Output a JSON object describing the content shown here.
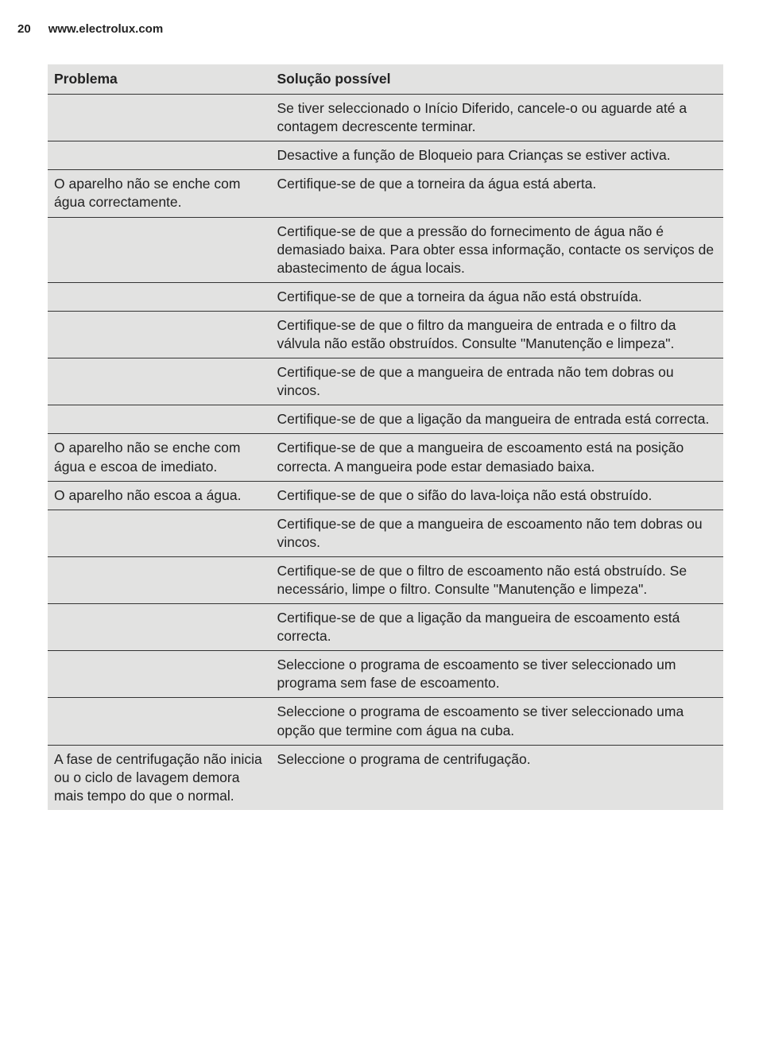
{
  "page": {
    "number": "20",
    "url": "www.electrolux.com"
  },
  "colors": {
    "row_bg": "#e2e2e1",
    "border": "#333333",
    "text": "#222222",
    "page_bg": "#ffffff"
  },
  "table": {
    "header": {
      "problem": "Problema",
      "solution": "Solução possível"
    },
    "rows": [
      {
        "problem": "",
        "solution": "Se tiver seleccionado o Início Diferido, cancele-o ou aguarde até a contagem decrescente terminar."
      },
      {
        "problem": "",
        "solution": "Desactive a função de Bloqueio para Crianças se estiver activa."
      },
      {
        "problem": "O aparelho não se enche com água correctamente.",
        "solution": "Certifique-se de que a torneira da água está aberta."
      },
      {
        "problem": "",
        "solution": "Certifique-se de que a pressão do fornecimento de água não é demasiado baixa. Para obter essa informação, contacte os serviços de abastecimento de água locais."
      },
      {
        "problem": "",
        "solution": "Certifique-se de que a torneira da água não está obstruída."
      },
      {
        "problem": "",
        "solution": "Certifique-se de que o filtro da mangueira de entrada e o filtro da válvula não estão obstruídos. Consulte \"Manutenção e limpeza\"."
      },
      {
        "problem": "",
        "solution": "Certifique-se de que a mangueira de entrada não tem dobras ou vincos."
      },
      {
        "problem": "",
        "solution": "Certifique-se de que a ligação da mangueira de entrada está correcta."
      },
      {
        "problem": "O aparelho não se enche com água e escoa de imediato.",
        "solution": "Certifique-se de que a mangueira de escoamento está na posição correcta. A mangueira pode estar demasiado baixa."
      },
      {
        "problem": "O aparelho não escoa a água.",
        "solution": "Certifique-se de que o sifão do lava-loiça não está obstruído."
      },
      {
        "problem": "",
        "solution": "Certifique-se de que a mangueira de escoamento não tem dobras ou vincos."
      },
      {
        "problem": "",
        "solution": "Certifique-se de que o filtro de escoamento não está obstruído. Se necessário, limpe o filtro. Consulte \"Manutenção e limpeza\"."
      },
      {
        "problem": "",
        "solution": "Certifique-se de que a ligação da mangueira de escoamento está correcta."
      },
      {
        "problem": "",
        "solution": "Seleccione o programa de escoamento se tiver seleccionado um programa sem fase de escoamento."
      },
      {
        "problem": "",
        "solution": "Seleccione o programa de escoamento se tiver seleccionado uma opção que termine com água na cuba."
      },
      {
        "problem": "A fase de centrifugação não inicia ou o ciclo de lavagem demora mais tempo do que o normal.",
        "solution": "Seleccione o programa de centrifugação."
      }
    ]
  }
}
